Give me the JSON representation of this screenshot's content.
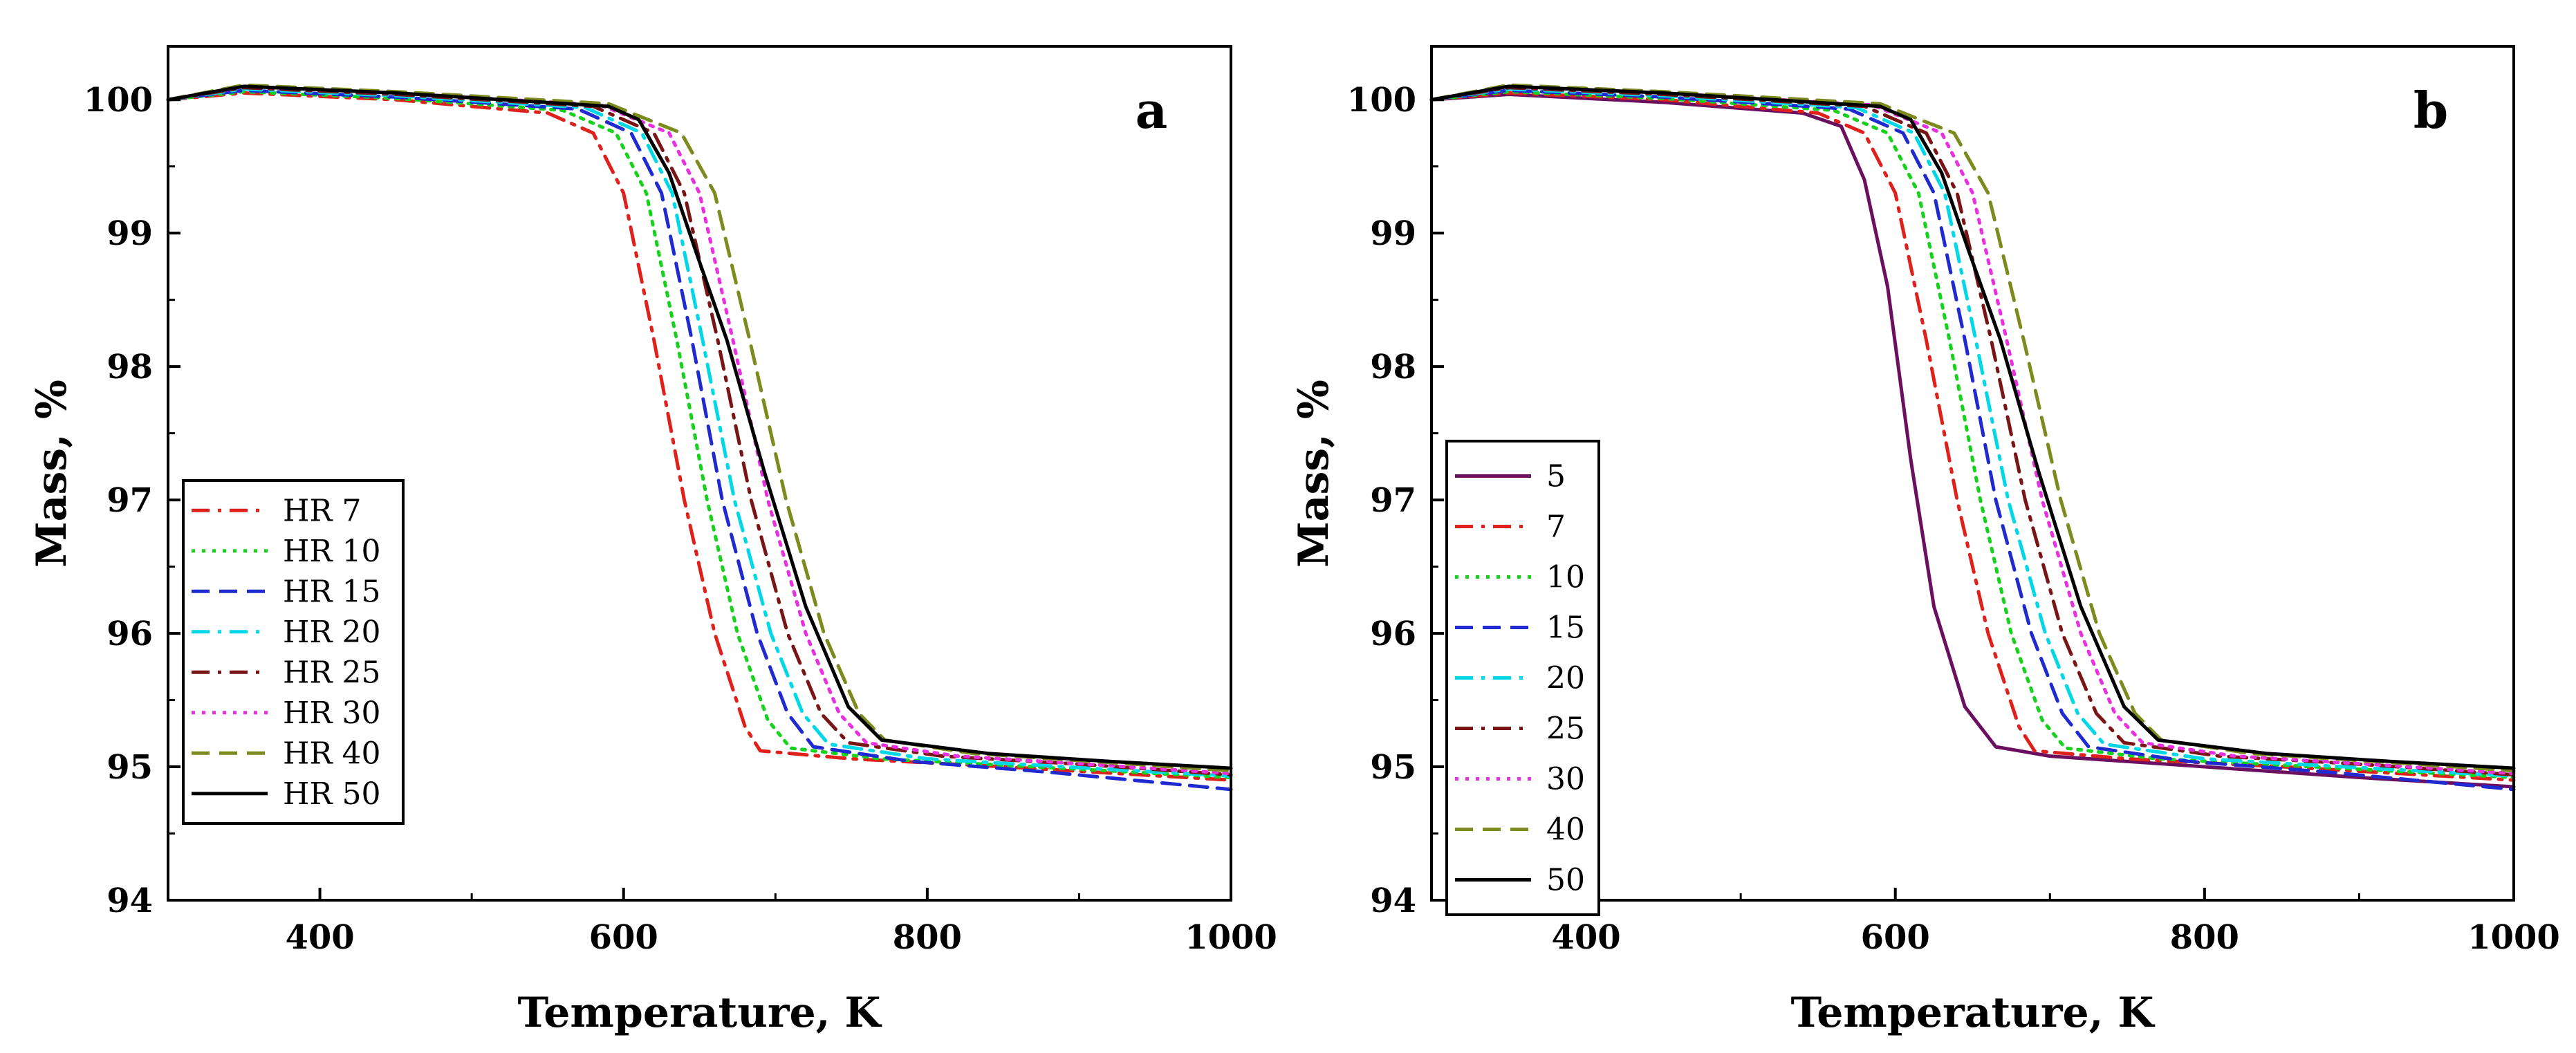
{
  "chart_data": [
    {
      "type": "line",
      "panel_label": "a",
      "xlabel": "Temperature, K",
      "ylabel": "Mass, %",
      "xlim": [
        300,
        1000
      ],
      "ylim": [
        94,
        100.4
      ],
      "xticks": [
        "400",
        "600",
        "800",
        "1000"
      ],
      "yticks": [
        "94",
        "95",
        "96",
        "97",
        "98",
        "99",
        "100"
      ],
      "legend_position": "lower-left",
      "series": [
        {
          "name": "HR 7",
          "color": "#e0201b",
          "dash": "dashdot",
          "points": [
            [
              300,
              100
            ],
            [
              350,
              100.05
            ],
            [
              450,
              100.0
            ],
            [
              550,
              99.9
            ],
            [
              580,
              99.75
            ],
            [
              600,
              99.3
            ],
            [
              620,
              98.2
            ],
            [
              640,
              97.0
            ],
            [
              660,
              96.0
            ],
            [
              680,
              95.3
            ],
            [
              690,
              95.12
            ],
            [
              750,
              95.06
            ],
            [
              850,
              95.0
            ],
            [
              1000,
              94.9
            ]
          ]
        },
        {
          "name": "HR 10",
          "color": "#16d21c",
          "dash": "dotted",
          "points": [
            [
              300,
              100
            ],
            [
              350,
              100.06
            ],
            [
              450,
              100.01
            ],
            [
              560,
              99.92
            ],
            [
              595,
              99.75
            ],
            [
              615,
              99.3
            ],
            [
              635,
              98.2
            ],
            [
              655,
              97.0
            ],
            [
              675,
              96.0
            ],
            [
              695,
              95.35
            ],
            [
              710,
              95.14
            ],
            [
              770,
              95.06
            ],
            [
              870,
              95.0
            ],
            [
              1000,
              94.92
            ]
          ]
        },
        {
          "name": "HR 15",
          "color": "#1f2ad0",
          "dash": "dashed",
          "points": [
            [
              300,
              100
            ],
            [
              350,
              100.07
            ],
            [
              450,
              100.02
            ],
            [
              570,
              99.93
            ],
            [
              605,
              99.75
            ],
            [
              625,
              99.3
            ],
            [
              645,
              98.2
            ],
            [
              665,
              97.0
            ],
            [
              688,
              96.0
            ],
            [
              708,
              95.4
            ],
            [
              725,
              95.15
            ],
            [
              790,
              95.04
            ],
            [
              880,
              94.96
            ],
            [
              1000,
              94.83
            ]
          ]
        },
        {
          "name": "HR 20",
          "color": "#00d8e8",
          "dash": "dashdot",
          "points": [
            [
              300,
              100
            ],
            [
              350,
              100.08
            ],
            [
              450,
              100.03
            ],
            [
              575,
              99.94
            ],
            [
              612,
              99.75
            ],
            [
              632,
              99.3
            ],
            [
              652,
              98.2
            ],
            [
              673,
              97.0
            ],
            [
              697,
              96.0
            ],
            [
              718,
              95.4
            ],
            [
              735,
              95.17
            ],
            [
              800,
              95.06
            ],
            [
              890,
              95.0
            ],
            [
              1000,
              94.93
            ]
          ]
        },
        {
          "name": "HR 25",
          "color": "#7a1515",
          "dash": "dashdot",
          "points": [
            [
              300,
              100
            ],
            [
              350,
              100.09
            ],
            [
              450,
              100.04
            ],
            [
              580,
              99.95
            ],
            [
              620,
              99.75
            ],
            [
              640,
              99.3
            ],
            [
              662,
              98.2
            ],
            [
              684,
              97.0
            ],
            [
              708,
              96.0
            ],
            [
              730,
              95.4
            ],
            [
              748,
              95.18
            ],
            [
              810,
              95.08
            ],
            [
              900,
              95.02
            ],
            [
              1000,
              94.94
            ]
          ]
        },
        {
          "name": "HR 30",
          "color": "#e830e0",
          "dash": "dotted",
          "points": [
            [
              300,
              100
            ],
            [
              350,
              100.1
            ],
            [
              450,
              100.05
            ],
            [
              585,
              99.96
            ],
            [
              630,
              99.75
            ],
            [
              650,
              99.3
            ],
            [
              672,
              98.2
            ],
            [
              695,
              97.0
            ],
            [
              720,
              96.0
            ],
            [
              742,
              95.4
            ],
            [
              760,
              95.18
            ],
            [
              820,
              95.08
            ],
            [
              905,
              95.02
            ],
            [
              1000,
              94.95
            ]
          ]
        },
        {
          "name": "HR 40",
          "color": "#7d8a1e",
          "dash": "dashed",
          "points": [
            [
              300,
              100
            ],
            [
              350,
              100.11
            ],
            [
              450,
              100.06
            ],
            [
              590,
              99.97
            ],
            [
              638,
              99.75
            ],
            [
              660,
              99.3
            ],
            [
              683,
              98.2
            ],
            [
              707,
              97.0
            ],
            [
              732,
              96.0
            ],
            [
              755,
              95.4
            ],
            [
              772,
              95.2
            ],
            [
              830,
              95.1
            ],
            [
              910,
              95.04
            ],
            [
              1000,
              94.97
            ]
          ]
        },
        {
          "name": "HR 50",
          "color": "#000000",
          "dash": "solid",
          "points": [
            [
              300,
              100
            ],
            [
              350,
              100.1
            ],
            [
              450,
              100.05
            ],
            [
              590,
              99.95
            ],
            [
              610,
              99.85
            ],
            [
              630,
              99.45
            ],
            [
              648,
              98.85
            ],
            [
              668,
              98.2
            ],
            [
              693,
              97.2
            ],
            [
              720,
              96.2
            ],
            [
              748,
              95.45
            ],
            [
              770,
              95.2
            ],
            [
              840,
              95.1
            ],
            [
              920,
              95.04
            ],
            [
              1000,
              94.99
            ]
          ]
        }
      ]
    },
    {
      "type": "line",
      "panel_label": "b",
      "xlabel": "Temperature, K",
      "ylabel": "Mass, %",
      "xlim": [
        300,
        1000
      ],
      "ylim": [
        94,
        100.4
      ],
      "xticks": [
        "400",
        "600",
        "800",
        "1000"
      ],
      "yticks": [
        "94",
        "95",
        "96",
        "97",
        "98",
        "99",
        "100"
      ],
      "legend_position": "lower-left",
      "series": [
        {
          "name": "5",
          "color": "#6b1060",
          "dash": "solid",
          "points": [
            [
              300,
              100
            ],
            [
              350,
              100.04
            ],
            [
              450,
              99.98
            ],
            [
              540,
              99.9
            ],
            [
              565,
              99.8
            ],
            [
              580,
              99.4
            ],
            [
              595,
              98.6
            ],
            [
              610,
              97.3
            ],
            [
              625,
              96.2
            ],
            [
              645,
              95.45
            ],
            [
              665,
              95.15
            ],
            [
              700,
              95.08
            ],
            [
              800,
              95.0
            ],
            [
              900,
              94.92
            ],
            [
              1000,
              94.85
            ]
          ]
        },
        {
          "name": "7",
          "color": "#e0201b",
          "dash": "dashdot",
          "points": [
            [
              300,
              100
            ],
            [
              350,
              100.05
            ],
            [
              450,
              100.0
            ],
            [
              550,
              99.9
            ],
            [
              580,
              99.75
            ],
            [
              600,
              99.3
            ],
            [
              620,
              98.2
            ],
            [
              640,
              97.0
            ],
            [
              660,
              96.0
            ],
            [
              680,
              95.3
            ],
            [
              690,
              95.12
            ],
            [
              750,
              95.06
            ],
            [
              850,
              95.0
            ],
            [
              1000,
              94.9
            ]
          ]
        },
        {
          "name": "10",
          "color": "#16d21c",
          "dash": "dotted",
          "points": [
            [
              300,
              100
            ],
            [
              350,
              100.06
            ],
            [
              450,
              100.01
            ],
            [
              560,
              99.92
            ],
            [
              595,
              99.75
            ],
            [
              615,
              99.3
            ],
            [
              635,
              98.2
            ],
            [
              655,
              97.0
            ],
            [
              675,
              96.0
            ],
            [
              695,
              95.35
            ],
            [
              710,
              95.14
            ],
            [
              770,
              95.06
            ],
            [
              870,
              95.0
            ],
            [
              1000,
              94.92
            ]
          ]
        },
        {
          "name": "15",
          "color": "#1f2ad0",
          "dash": "dashed",
          "points": [
            [
              300,
              100
            ],
            [
              350,
              100.07
            ],
            [
              450,
              100.02
            ],
            [
              570,
              99.93
            ],
            [
              605,
              99.75
            ],
            [
              625,
              99.3
            ],
            [
              645,
              98.2
            ],
            [
              665,
              97.0
            ],
            [
              688,
              96.0
            ],
            [
              708,
              95.4
            ],
            [
              725,
              95.15
            ],
            [
              790,
              95.04
            ],
            [
              880,
              94.96
            ],
            [
              1000,
              94.83
            ]
          ]
        },
        {
          "name": "20",
          "color": "#00d8e8",
          "dash": "dashdot",
          "points": [
            [
              300,
              100
            ],
            [
              350,
              100.08
            ],
            [
              450,
              100.03
            ],
            [
              575,
              99.94
            ],
            [
              612,
              99.75
            ],
            [
              632,
              99.3
            ],
            [
              652,
              98.2
            ],
            [
              673,
              97.0
            ],
            [
              697,
              96.0
            ],
            [
              718,
              95.4
            ],
            [
              735,
              95.17
            ],
            [
              800,
              95.06
            ],
            [
              890,
              95.0
            ],
            [
              1000,
              94.93
            ]
          ]
        },
        {
          "name": "25",
          "color": "#7a1515",
          "dash": "dashdot",
          "points": [
            [
              300,
              100
            ],
            [
              350,
              100.09
            ],
            [
              450,
              100.04
            ],
            [
              580,
              99.95
            ],
            [
              620,
              99.75
            ],
            [
              640,
              99.3
            ],
            [
              662,
              98.2
            ],
            [
              684,
              97.0
            ],
            [
              708,
              96.0
            ],
            [
              730,
              95.4
            ],
            [
              748,
              95.18
            ],
            [
              810,
              95.08
            ],
            [
              900,
              95.02
            ],
            [
              1000,
              94.94
            ]
          ]
        },
        {
          "name": "30",
          "color": "#e830e0",
          "dash": "dotted",
          "points": [
            [
              300,
              100
            ],
            [
              350,
              100.1
            ],
            [
              450,
              100.05
            ],
            [
              585,
              99.96
            ],
            [
              630,
              99.75
            ],
            [
              650,
              99.3
            ],
            [
              672,
              98.2
            ],
            [
              695,
              97.0
            ],
            [
              720,
              96.0
            ],
            [
              742,
              95.4
            ],
            [
              760,
              95.18
            ],
            [
              820,
              95.08
            ],
            [
              905,
              95.02
            ],
            [
              1000,
              94.95
            ]
          ]
        },
        {
          "name": "40",
          "color": "#7d8a1e",
          "dash": "dashed",
          "points": [
            [
              300,
              100
            ],
            [
              350,
              100.11
            ],
            [
              450,
              100.06
            ],
            [
              590,
              99.97
            ],
            [
              638,
              99.75
            ],
            [
              660,
              99.3
            ],
            [
              683,
              98.2
            ],
            [
              707,
              97.0
            ],
            [
              732,
              96.0
            ],
            [
              755,
              95.4
            ],
            [
              772,
              95.2
            ],
            [
              830,
              95.1
            ],
            [
              910,
              95.04
            ],
            [
              1000,
              94.97
            ]
          ]
        },
        {
          "name": "50",
          "color": "#000000",
          "dash": "solid",
          "points": [
            [
              300,
              100
            ],
            [
              350,
              100.1
            ],
            [
              450,
              100.05
            ],
            [
              590,
              99.95
            ],
            [
              610,
              99.85
            ],
            [
              630,
              99.45
            ],
            [
              648,
              98.85
            ],
            [
              668,
              98.2
            ],
            [
              693,
              97.2
            ],
            [
              720,
              96.2
            ],
            [
              748,
              95.45
            ],
            [
              770,
              95.2
            ],
            [
              840,
              95.1
            ],
            [
              920,
              95.04
            ],
            [
              1000,
              94.99
            ]
          ]
        }
      ]
    }
  ]
}
